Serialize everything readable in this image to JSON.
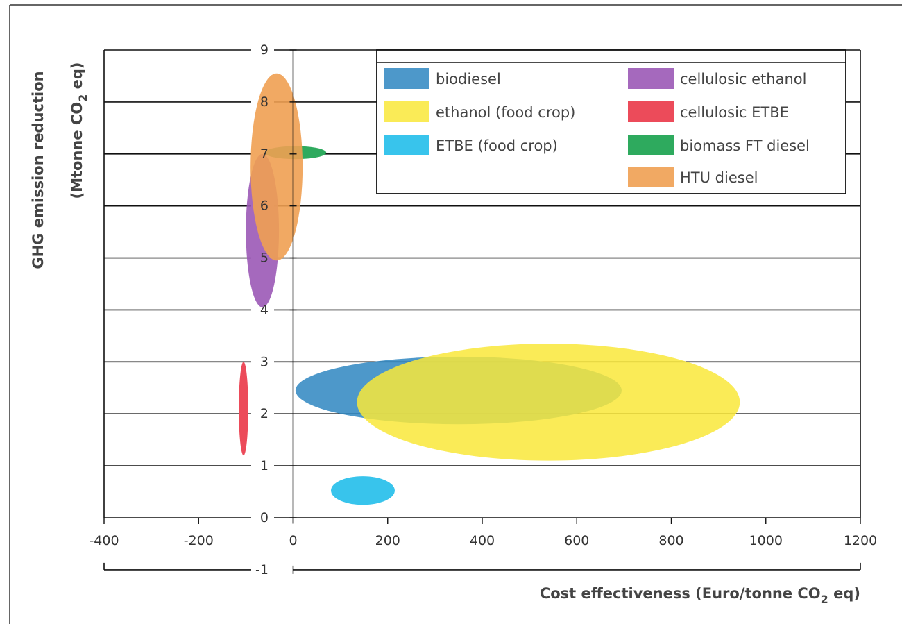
{
  "chart_data": {
    "type": "bubble",
    "title": "",
    "xlabel": "Cost effectiveness (Euro/tonne CO2 eq)",
    "xlabel_parts": {
      "pre": "Cost effectiveness (Euro/tonne CO",
      "sub": "2",
      "post": " eq)"
    },
    "ylabel_line1": "GHG emission reduction",
    "ylabel_parts": {
      "pre": "(Mtonne CO",
      "sub": "2",
      "post": " eq)"
    },
    "xlim": [
      -400,
      1200
    ],
    "ylim": [
      -1,
      9
    ],
    "x_ticks": [
      "-400",
      "-200",
      "0",
      "200",
      "400",
      "600",
      "800",
      "1000",
      "1200"
    ],
    "x_tick_values": [
      -400,
      -200,
      0,
      200,
      400,
      600,
      800,
      1000,
      1200
    ],
    "y_ticks": [
      "-1",
      "0",
      "1",
      "2",
      "3",
      "4",
      "5",
      "6",
      "7",
      "8",
      "9"
    ],
    "y_tick_values": [
      -1,
      0,
      1,
      2,
      3,
      4,
      5,
      6,
      7,
      8,
      9
    ],
    "grid": "horizontal",
    "legend_position": "top-right",
    "series": [
      {
        "name": "biodiesel",
        "color": "#2e86c1",
        "opacity": 0.85,
        "x_range": [
          5,
          695
        ],
        "y_range": [
          1.8,
          3.1
        ]
      },
      {
        "name": "ethanol (food crop)",
        "color": "#f9e83a",
        "opacity": 0.85,
        "x_range": [
          135,
          945
        ],
        "y_range": [
          1.1,
          3.35
        ]
      },
      {
        "name": "ETBE (food crop)",
        "color": "#38c4ec",
        "opacity": 1,
        "x_range": [
          80,
          215
        ],
        "y_range": [
          0.25,
          0.8
        ]
      },
      {
        "name": "cellulosic ethanol",
        "color": "#9b59b6",
        "opacity": 0.9,
        "x_range": [
          -100,
          -30
        ],
        "y_range": [
          4.05,
          7.0
        ]
      },
      {
        "name": "cellulosic ETBE",
        "color": "#ec4b5a",
        "opacity": 1,
        "x_range": [
          -115,
          -95
        ],
        "y_range": [
          1.2,
          3.0
        ]
      },
      {
        "name": "biomass FT diesel",
        "color": "#2eaa5e",
        "opacity": 1,
        "x_range": [
          -60,
          70
        ],
        "y_range": [
          6.9,
          7.15
        ]
      },
      {
        "name": "HTU diesel",
        "color": "#f0a052",
        "opacity": 0.9,
        "x_range": [
          -90,
          20
        ],
        "y_range": [
          4.95,
          8.55
        ]
      }
    ]
  }
}
